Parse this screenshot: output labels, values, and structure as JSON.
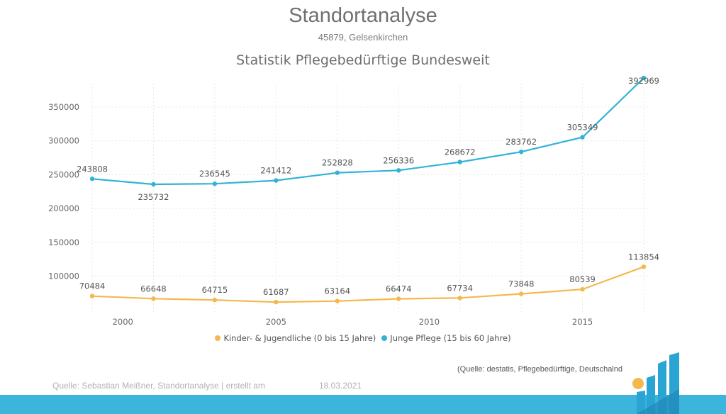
{
  "header": {
    "title": "Standortanalyse",
    "subtitle": "45879, Gelsenkirchen"
  },
  "chart_data": {
    "type": "line",
    "title": "Statistik Pflegebedürftige Bundesweit",
    "xlabel": "",
    "ylabel": "",
    "x": [
      1999,
      2001,
      2003,
      2005,
      2007,
      2009,
      2011,
      2013,
      2015,
      2017
    ],
    "x_ticks": [
      "2000",
      "2005",
      "2010",
      "2015"
    ],
    "y_ticks": [
      "100000",
      "150000",
      "200000",
      "250000",
      "300000",
      "350000"
    ],
    "ylim": [
      45000,
      395000
    ],
    "xlim": [
      1999,
      2017
    ],
    "grid": true,
    "legend_position": "bottom",
    "series": [
      {
        "name": "Kinder- & Jugendliche (0 bis 15 Jahre)",
        "color": "#f4b84e",
        "values": [
          70484,
          66648,
          64715,
          61687,
          63164,
          66474,
          67734,
          73848,
          80539,
          113854
        ],
        "labels": [
          "70484",
          "66648",
          "64715",
          "61687",
          "63164",
          "66474",
          "67734",
          "73848",
          "80539",
          "113854"
        ]
      },
      {
        "name": "Junge Pflege (15 bis 60 Jahre)",
        "color": "#33b2d8",
        "values": [
          243808,
          235732,
          236545,
          241412,
          252828,
          256336,
          268672,
          283762,
          305349,
          392969
        ],
        "labels": [
          "243808",
          "235732",
          "236545",
          "241412",
          "252828",
          "256336",
          "268672",
          "283762",
          "305349",
          "392969"
        ]
      }
    ]
  },
  "source_note": "(Quelle: destatis, Pflegebedürftige, Deutschalnd",
  "footer": {
    "credit": "Quelle: Sebastian Meißner, Standortanalyse | erstellt am",
    "date": "18.03.2021",
    "bar_color": "#3bb5dc"
  },
  "logo": {
    "icon": "bar-chart-logo-icon",
    "dot_color": "#f4b84e",
    "bar_color": "#2aa4d3"
  }
}
